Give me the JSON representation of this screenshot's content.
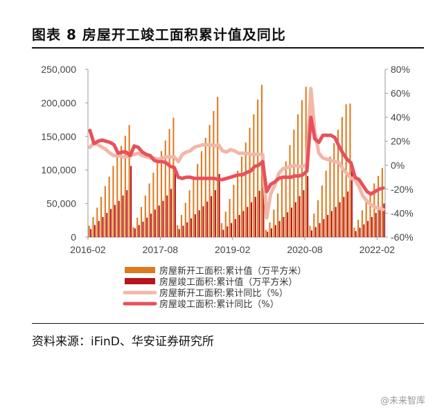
{
  "header": {
    "title": "图表 8 房屋开工竣工面积累计值及同比"
  },
  "footer": {
    "source": "资料来源：iFinD、华安证券研究所",
    "watermark": "@未来智库"
  },
  "chart_data": {
    "type": "bar",
    "title": "图表 8 房屋开工竣工面积累计值及同比",
    "x_tick_labels": [
      "2016-02",
      "2017-08",
      "2019-02",
      "2020-08",
      "2022-02"
    ],
    "y_left": {
      "ticks": [
        "0",
        "50,000",
        "100,000",
        "150,000",
        "200,000",
        "250,000"
      ],
      "ylim": [
        0,
        250000
      ]
    },
    "y_right": {
      "ticks": [
        "-60%",
        "-40%",
        "-20%",
        "0%",
        "20%",
        "40%",
        "60%",
        "80%"
      ],
      "ylim": [
        -60,
        80
      ]
    },
    "legend_position": "bottom",
    "grid": false,
    "series": [
      {
        "name": "房屋新开工面积:累计值（万平方米）",
        "type": "bar",
        "axis": "left",
        "color": "#E07A1F",
        "values": [
          17,
          30,
          44,
          60,
          76,
          90,
          106,
          122,
          136,
          151,
          167,
          15,
          29,
          45,
          62,
          80,
          96,
          112,
          128,
          144,
          161,
          178,
          18,
          33,
          51,
          70,
          90,
          109,
          128,
          148,
          167,
          188,
          209,
          21,
          38,
          57,
          78,
          99,
          120,
          141,
          163,
          183,
          205,
          227,
          11,
          22,
          41,
          65,
          90,
          113,
          137,
          160,
          183,
          204,
          224,
          17,
          35,
          55,
          77,
          99,
          120,
          140,
          160,
          179,
          198,
          199,
          14,
          26,
          40,
          54,
          67,
          80,
          91,
          103
        ]
      },
      {
        "name": "房屋竣工面积:累计值（万平方米）",
        "type": "bar",
        "axis": "left",
        "color": "#B8141C",
        "values": [
          12,
          18,
          24,
          30,
          36,
          42,
          48,
          54,
          62,
          70,
          106,
          13,
          18,
          23,
          29,
          35,
          41,
          47,
          54,
          62,
          72,
          101,
          12,
          17,
          22,
          28,
          34,
          40,
          46,
          53,
          61,
          70,
          94,
          11,
          16,
          21,
          27,
          33,
          39,
          45,
          52,
          60,
          69,
          96,
          8,
          13,
          18,
          24,
          30,
          37,
          44,
          52,
          61,
          70,
          91,
          10,
          15,
          21,
          27,
          33,
          39,
          45,
          52,
          60,
          68,
          101,
          9,
          14,
          19,
          24,
          30,
          36,
          43,
          50
        ]
      },
      {
        "name": "房屋新开工面积:累计同比（%）",
        "type": "line",
        "axis": "right",
        "color": "#F2B7A8",
        "values": [
          15,
          19,
          17,
          15,
          13,
          10,
          8,
          8,
          7,
          7,
          8,
          9,
          10,
          8,
          7,
          6,
          6,
          5,
          6,
          7,
          7,
          7,
          3,
          9,
          11,
          12,
          15,
          16,
          17,
          17,
          17,
          16,
          17,
          12,
          11,
          13,
          12,
          10,
          10,
          10,
          9,
          9,
          9,
          9,
          -44,
          -24,
          -17,
          -7,
          -3,
          -2,
          -1,
          0,
          -1,
          -1,
          1,
          64,
          28,
          10,
          6,
          5,
          4,
          3,
          2,
          -3,
          -7,
          -11,
          -12,
          -18,
          -26,
          -30,
          -33,
          -35,
          -36,
          -37
        ]
      },
      {
        "name": "房屋竣工面积:累计同比（%）",
        "type": "line",
        "axis": "right",
        "color": "#E8505B",
        "values": [
          29,
          18,
          20,
          21,
          20,
          19,
          17,
          10,
          11,
          11,
          8,
          16,
          15,
          11,
          9,
          8,
          4,
          3,
          3,
          2,
          -1,
          -2,
          -10,
          -11,
          -10,
          -10,
          -11,
          -11,
          -11,
          -11,
          -11,
          -11,
          -12,
          -12,
          -11,
          -10,
          -9,
          -8,
          -8,
          -6,
          -5,
          -1,
          0,
          3,
          -22,
          -16,
          -14,
          -11,
          -10,
          -10,
          -10,
          -9,
          -9,
          -8,
          -5,
          40,
          22,
          19,
          25,
          25,
          25,
          23,
          16,
          10,
          5,
          2,
          -10,
          -12,
          -17,
          -22,
          -24,
          -22,
          -20,
          -19
        ]
      }
    ]
  }
}
